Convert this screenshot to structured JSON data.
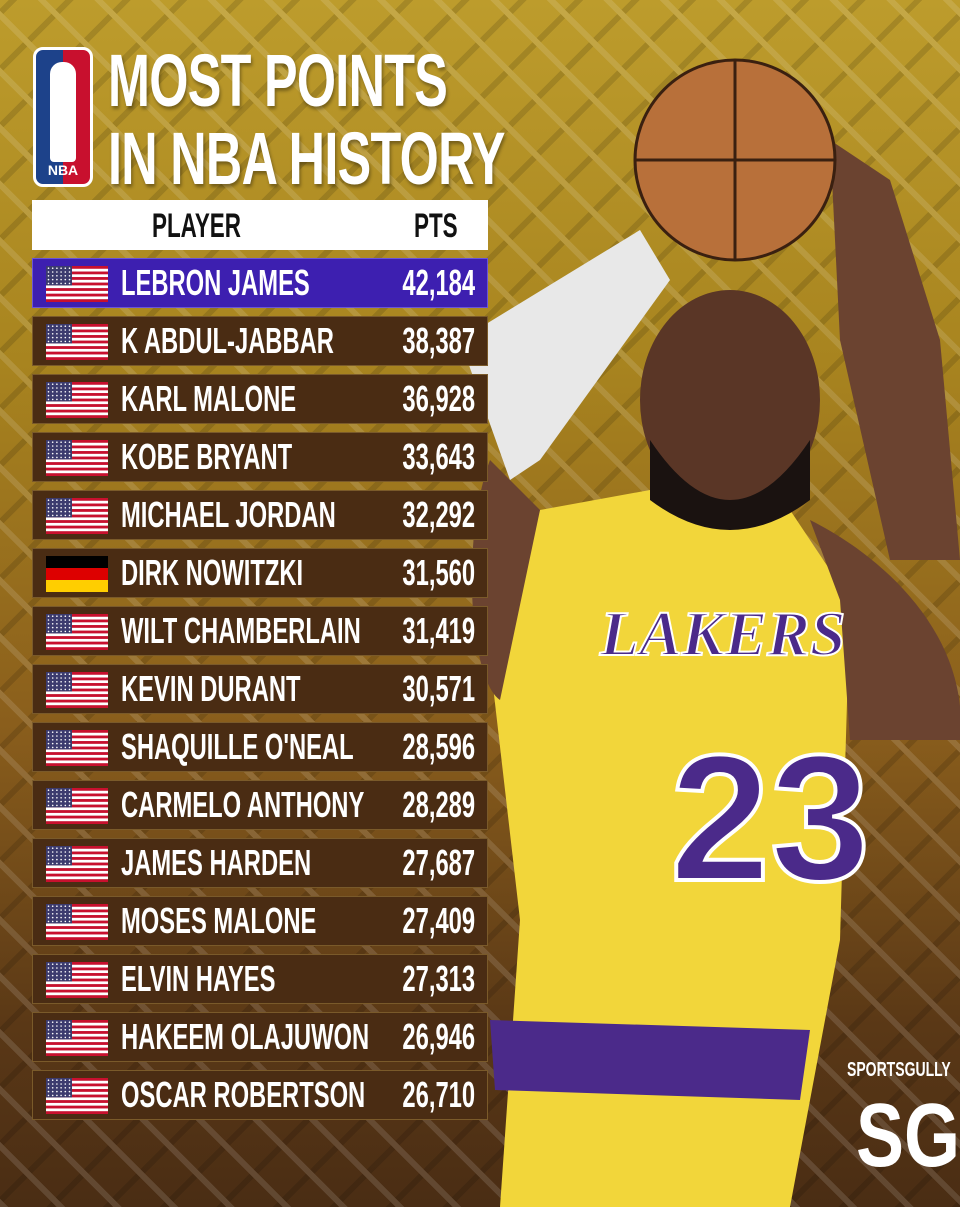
{
  "title": {
    "line1": "MOST POINTS",
    "line2": "IN NBA HISTORY"
  },
  "logo": {
    "text": "NBA"
  },
  "brand": {
    "name": "SPORTSGULLY",
    "mark": "SG"
  },
  "colors": {
    "highlight_row": "#3d1fb0",
    "row": "#4a2c13",
    "header": "#ffffff",
    "background_top": "#bd9c2c",
    "background_bottom": "#4a2d14"
  },
  "photo": {
    "jersey_number": "23",
    "jersey_text": "LAKERS"
  },
  "chart_data": {
    "type": "table",
    "columns": [
      "PLAYER",
      "PTS"
    ],
    "rows": [
      {
        "flag": "usa",
        "player": "LEBRON JAMES",
        "pts": "42,184"
      },
      {
        "flag": "usa",
        "player": "K ABDUL-JABBAR",
        "pts": "38,387"
      },
      {
        "flag": "usa",
        "player": "KARL MALONE",
        "pts": "36,928"
      },
      {
        "flag": "usa",
        "player": "KOBE BRYANT",
        "pts": "33,643"
      },
      {
        "flag": "usa",
        "player": "MICHAEL JORDAN",
        "pts": "32,292"
      },
      {
        "flag": "germany",
        "player": "DIRK NOWITZKI",
        "pts": "31,560"
      },
      {
        "flag": "usa",
        "player": "WILT CHAMBERLAIN",
        "pts": "31,419"
      },
      {
        "flag": "usa",
        "player": "KEVIN DURANT",
        "pts": "30,571"
      },
      {
        "flag": "usa",
        "player": "SHAQUILLE O'NEAL",
        "pts": "28,596"
      },
      {
        "flag": "usa",
        "player": "CARMELO ANTHONY",
        "pts": "28,289"
      },
      {
        "flag": "usa",
        "player": "JAMES HARDEN",
        "pts": "27,687"
      },
      {
        "flag": "usa",
        "player": "MOSES MALONE",
        "pts": "27,409"
      },
      {
        "flag": "usa",
        "player": "ELVIN HAYES",
        "pts": "27,313"
      },
      {
        "flag": "usa",
        "player": "HAKEEM OLAJUWON",
        "pts": "26,946"
      },
      {
        "flag": "usa",
        "player": "OSCAR ROBERTSON",
        "pts": "26,710"
      }
    ]
  }
}
